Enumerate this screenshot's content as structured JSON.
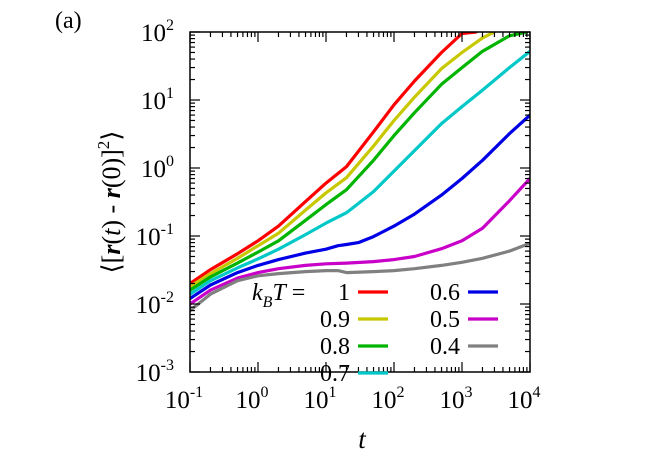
{
  "panel_label": "(a)",
  "chart_data": {
    "type": "line",
    "xscale": "log",
    "yscale": "log",
    "xlim": [
      0.1,
      10000
    ],
    "ylim": [
      0.001,
      100
    ],
    "xlabel": "t",
    "ylabel": "⟨[r(t) - r(0)]²⟩",
    "x_ticks": [
      {
        "base": "10",
        "exp": "-1",
        "value": 0.1
      },
      {
        "base": "10",
        "exp": "0",
        "value": 1
      },
      {
        "base": "10",
        "exp": "1",
        "value": 10
      },
      {
        "base": "10",
        "exp": "2",
        "value": 100
      },
      {
        "base": "10",
        "exp": "3",
        "value": 1000
      },
      {
        "base": "10",
        "exp": "4",
        "value": 10000
      }
    ],
    "y_ticks": [
      {
        "base": "10",
        "exp": "-3",
        "value": 0.001
      },
      {
        "base": "10",
        "exp": "-2",
        "value": 0.01
      },
      {
        "base": "10",
        "exp": "-1",
        "value": 0.1
      },
      {
        "base": "10",
        "exp": "0",
        "value": 1
      },
      {
        "base": "10",
        "exp": "1",
        "value": 10
      },
      {
        "base": "10",
        "exp": "2",
        "value": 100
      }
    ],
    "grid": false,
    "legend_title": "k_BT =",
    "legend_placement": "bottom-right",
    "series": [
      {
        "name": "1",
        "color": "#ff0000",
        "x": [
          0.1,
          0.2,
          0.5,
          1,
          2,
          5,
          10,
          20,
          50,
          100,
          200,
          500,
          1000,
          1600
        ],
        "y": [
          0.02,
          0.032,
          0.055,
          0.085,
          0.14,
          0.32,
          0.6,
          1.05,
          3.4,
          8.5,
          19,
          50,
          95,
          100
        ]
      },
      {
        "name": "0.9",
        "color": "#c8c800",
        "x": [
          0.1,
          0.2,
          0.5,
          1,
          2,
          5,
          10,
          20,
          50,
          100,
          200,
          500,
          1000,
          2000,
          3000
        ],
        "y": [
          0.018,
          0.028,
          0.047,
          0.072,
          0.11,
          0.24,
          0.43,
          0.72,
          2.1,
          5,
          11,
          29,
          50,
          82,
          100
        ]
      },
      {
        "name": "0.8",
        "color": "#00b400",
        "x": [
          0.1,
          0.2,
          0.5,
          1,
          2,
          5,
          10,
          20,
          50,
          100,
          200,
          500,
          1000,
          2000,
          5000,
          9000
        ],
        "y": [
          0.016,
          0.025,
          0.04,
          0.058,
          0.085,
          0.17,
          0.29,
          0.48,
          1.3,
          3,
          6.5,
          17,
          30,
          52,
          88,
          100
        ]
      },
      {
        "name": "0.7",
        "color": "#00c8c8",
        "x": [
          0.1,
          0.2,
          0.5,
          1,
          2,
          5,
          10,
          20,
          50,
          100,
          200,
          500,
          1000,
          2000,
          5000,
          10000
        ],
        "y": [
          0.014,
          0.022,
          0.034,
          0.046,
          0.064,
          0.105,
          0.155,
          0.22,
          0.45,
          0.9,
          1.8,
          4.5,
          8,
          14,
          30,
          52
        ]
      },
      {
        "name": "0.6",
        "color": "#0000e6",
        "x": [
          0.1,
          0.2,
          0.5,
          1,
          2,
          5,
          10,
          15,
          20,
          30,
          50,
          100,
          200,
          500,
          1000,
          2000,
          5000,
          10000
        ],
        "y": [
          0.012,
          0.019,
          0.029,
          0.037,
          0.045,
          0.056,
          0.064,
          0.072,
          0.075,
          0.08,
          0.098,
          0.14,
          0.21,
          0.4,
          0.7,
          1.3,
          3.2,
          6
        ]
      },
      {
        "name": "0.5",
        "color": "#c800c8",
        "x": [
          0.1,
          0.2,
          0.5,
          1,
          2,
          5,
          10,
          20,
          50,
          100,
          200,
          500,
          1000,
          2000,
          5000,
          10000
        ],
        "y": [
          0.01,
          0.016,
          0.024,
          0.029,
          0.033,
          0.037,
          0.039,
          0.04,
          0.042,
          0.045,
          0.05,
          0.065,
          0.085,
          0.13,
          0.33,
          0.7
        ]
      },
      {
        "name": "0.4",
        "color": "#808080",
        "x": [
          0.1,
          0.2,
          0.5,
          1,
          2,
          5,
          10,
          15,
          20,
          50,
          100,
          200,
          500,
          1000,
          2000,
          5000,
          10000
        ],
        "y": [
          0.008,
          0.014,
          0.022,
          0.026,
          0.028,
          0.03,
          0.031,
          0.031,
          0.029,
          0.03,
          0.031,
          0.033,
          0.037,
          0.041,
          0.047,
          0.06,
          0.078
        ]
      }
    ]
  }
}
